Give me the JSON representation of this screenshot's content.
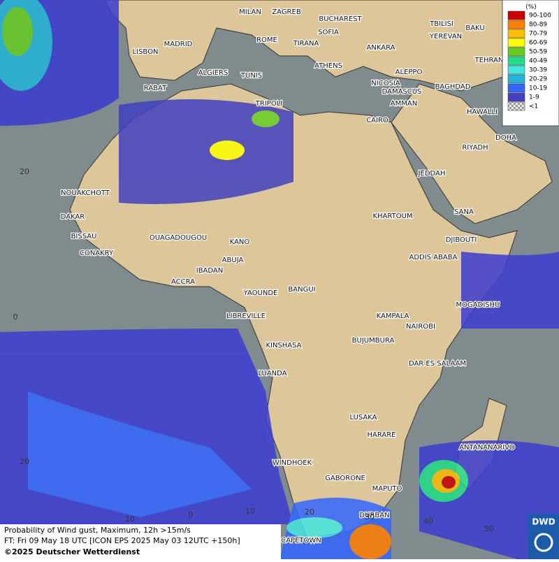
{
  "legend": {
    "unit": "(%)",
    "items": [
      {
        "label": "90-100",
        "color": "#cc0000"
      },
      {
        "label": "80-89",
        "color": "#ff7f00"
      },
      {
        "label": "70-79",
        "color": "#ffbf00"
      },
      {
        "label": "60-69",
        "color": "#ffff00"
      },
      {
        "label": "50-59",
        "color": "#66cc22"
      },
      {
        "label": "40-49",
        "color": "#22dd88"
      },
      {
        "label": "30-39",
        "color": "#44e6e0"
      },
      {
        "label": "20-29",
        "color": "#22b4d8"
      },
      {
        "label": "10-19",
        "color": "#3366ff"
      },
      {
        "label": "1-9",
        "color": "#4040c0"
      },
      {
        "label": "<1",
        "color": "#bbbbbb"
      }
    ]
  },
  "cities": [
    "MILAN",
    "ZAGREB",
    "BUCHAREST",
    "TBILISI",
    "BAKU",
    "SOFIA",
    "YEREVAN",
    "ROME",
    "TIRANA",
    "ANKARA",
    "MADRID",
    "LISBON",
    "TEHRAN",
    "ATHENS",
    "ALGIERS",
    "TUNIS",
    "ALEPPO",
    "RABAT",
    "NICOSIA",
    "BAGHDAD",
    "DAMASCUS",
    "AMMAN",
    "TRIPOLI",
    "HAWALLI",
    "CAIRO",
    "DOHA",
    "RIYADH",
    "JEDDAH",
    "NOUAKCHOTT",
    "SANA",
    "DAKAR",
    "KHARTOUM",
    "BISSAU",
    "DJIBOUTI",
    "OUAGADOUGOU",
    "KANO",
    "CONAKRY",
    "ABUJA",
    "ADDIS ABABA",
    "IBADAN",
    "ACCRA",
    "MOGADISHU",
    "YAOUNDE",
    "BANGUI",
    "LIBREVILLE",
    "KAMPALA",
    "NAIROBI",
    "KINSHASA",
    "BUJUMBURA",
    "DAR ES SALAAM",
    "LUANDA",
    "LUSAKA",
    "HARARE",
    "ANTANANARIVO",
    "WINDHOEK",
    "GABORONE",
    "MAPUTO",
    "DURBAN",
    "CAPETOWN"
  ],
  "grid_labels": {
    "lat": [
      "20",
      "0",
      "20"
    ],
    "lon": [
      "10",
      "0",
      "10",
      "20",
      "30",
      "40",
      "50"
    ]
  },
  "info": [
    "Probability of Wind gust, Maximum, 12h >15m/s",
    "FT: Fri 09 May 18 UTC [ICON EPS 2025 May 03 12UTC +150h]",
    "©2025 Deutscher Wetterdienst"
  ],
  "logo": "DWD"
}
